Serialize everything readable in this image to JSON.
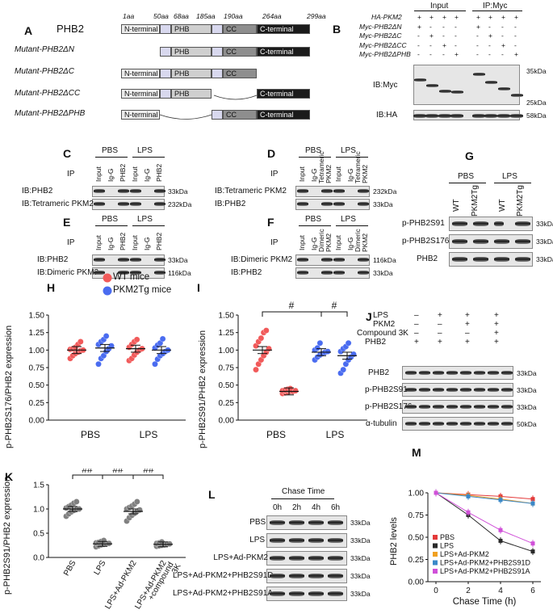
{
  "panelA": {
    "letter": "A",
    "protein": "PHB2",
    "aa": [
      "1aa",
      "50aa",
      "68aa",
      "185aa",
      "190aa",
      "264aa",
      "299aa"
    ],
    "domains": {
      "nterm": "N-terminal",
      "phb": "PHB",
      "cc": "CC",
      "cterm": "C-terminal"
    },
    "mutants": [
      "Mutant-PHB2ΔN",
      "Mutant-PHB2ΔC",
      "Mutant-PHB2ΔCC",
      "Mutant-PHB2ΔPHB"
    ]
  },
  "panelB": {
    "letter": "B",
    "groups": [
      "Input",
      "IP:Myc"
    ],
    "rows": [
      {
        "label": "HA-PKM2",
        "marks": [
          "+",
          "+",
          "+",
          "+",
          "+",
          "+",
          "+",
          "+"
        ]
      },
      {
        "label": "Myc-PHB2ΔN",
        "marks": [
          "+",
          "",
          "",
          "",
          "+",
          "",
          "",
          ""
        ]
      },
      {
        "label": "Myc-PHB2ΔC",
        "marks": [
          "",
          "+",
          "",
          "",
          "",
          "+",
          "",
          ""
        ]
      },
      {
        "label": "Myc-PHB2ΔCC",
        "marks": [
          "",
          "",
          "+",
          "",
          "",
          "",
          "+",
          ""
        ]
      },
      {
        "label": "Myc-PHB2ΔPHB",
        "marks": [
          "",
          "",
          "",
          "+",
          "",
          "",
          "",
          "+"
        ]
      }
    ],
    "blots": [
      "IB:Myc",
      "IB:HA"
    ],
    "mw": [
      "35kDa",
      "25kDa",
      "58kDa"
    ]
  },
  "panelC": {
    "letter": "C",
    "groups": [
      "PBS",
      "LPS"
    ],
    "ip": "IP",
    "lanes": [
      "Input",
      "Ig-G",
      "PHB2",
      "Input",
      "Ig-G",
      "PHB2"
    ],
    "blots": [
      "IB:PHB2",
      "IB:Tetrameric PKM2"
    ],
    "mw": [
      "33kDa",
      "232kDa"
    ]
  },
  "panelD": {
    "letter": "D",
    "groups": [
      "PBS",
      "LPS"
    ],
    "ip": "IP",
    "lanes": [
      "Input",
      "Ig-G",
      "Tetrameric PKM2",
      "Input",
      "Ig-G",
      "Tetrameric PKM2"
    ],
    "blots": [
      "IB:Tetrameric PKM2",
      "IB:PHB2"
    ],
    "mw": [
      "232kDa",
      "33kDa"
    ]
  },
  "panelE": {
    "letter": "E",
    "groups": [
      "PBS",
      "LPS"
    ],
    "ip": "IP",
    "lanes": [
      "Input",
      "Ig-G",
      "PHB2",
      "Input",
      "Ig-G",
      "PHB2"
    ],
    "blots": [
      "IB:PHB2",
      "IB:Dimeric  PKM2"
    ],
    "mw": [
      "33kDa",
      "116kDa"
    ]
  },
  "panelF": {
    "letter": "F",
    "groups": [
      "PBS",
      "LPS"
    ],
    "ip": "IP",
    "lanes": [
      "Input",
      "Ig-G",
      "Dimeric PKM2",
      "Input",
      "Ig-G",
      "Dimeric PKM2"
    ],
    "blots": [
      "IB:Dimeric  PKM2",
      "IB:PHB2"
    ],
    "mw": [
      "116kDa",
      "33kDa"
    ]
  },
  "panelG": {
    "letter": "G",
    "groups": [
      "PBS",
      "LPS"
    ],
    "lanes": [
      "WT",
      "PKM2Tg",
      "WT",
      "PKM2Tg"
    ],
    "blots": [
      "p-PHB2S91",
      "p-PHB2S176",
      "PHB2"
    ],
    "mw": [
      "33kDa",
      "33kDa",
      "33kDa"
    ]
  },
  "panelH": {
    "letter": "H",
    "legend": [
      "WT mice",
      "PKM2Tg mice"
    ],
    "chart_data": {
      "type": "scatter",
      "ylabel": "p-PHB2S176/PHB2 expression",
      "categories": [
        "PBS",
        "LPS"
      ],
      "ylim": [
        0,
        1.5
      ],
      "yticks": [
        "0.00",
        "0.25",
        "0.50",
        "0.75",
        "1.00",
        "1.25",
        "1.50"
      ],
      "series": [
        {
          "name": "WT mice",
          "color": "#f15a5a",
          "groups": [
            {
              "category": "PBS",
              "mean": 1.0,
              "values": [
                0.88,
                0.92,
                0.95,
                0.97,
                0.99,
                1.0,
                1.01,
                1.02,
                1.04,
                1.08,
                1.12
              ]
            },
            {
              "category": "LPS",
              "mean": 1.02,
              "values": [
                0.85,
                0.88,
                0.93,
                0.97,
                1.0,
                1.02,
                1.04,
                1.08,
                1.12,
                1.15
              ]
            }
          ]
        },
        {
          "name": "PKM2Tg mice",
          "color": "#4a6cf0",
          "groups": [
            {
              "category": "PBS",
              "mean": 1.03,
              "values": [
                0.8,
                0.88,
                0.92,
                0.98,
                1.02,
                1.06,
                1.08,
                1.12,
                1.15,
                1.2
              ]
            },
            {
              "category": "LPS",
              "mean": 1.0,
              "values": [
                0.8,
                0.87,
                0.92,
                0.95,
                0.98,
                1.0,
                1.03,
                1.07,
                1.1,
                1.16
              ]
            }
          ]
        }
      ]
    }
  },
  "panelI": {
    "letter": "I",
    "sig": [
      "#",
      "#"
    ],
    "chart_data": {
      "type": "scatter",
      "ylabel": "p-PHB2S91/PHB2 expression",
      "categories": [
        "PBS",
        "LPS"
      ],
      "ylim": [
        0,
        1.5
      ],
      "yticks": [
        "0.00",
        "0.25",
        "0.50",
        "0.75",
        "1.00",
        "1.25",
        "1.50"
      ],
      "series": [
        {
          "name": "WT mice",
          "color": "#f15a5a",
          "groups": [
            {
              "category": "PBS",
              "mean": 1.0,
              "values": [
                0.72,
                0.8,
                0.86,
                0.92,
                0.97,
                1.02,
                1.06,
                1.12,
                1.17,
                1.25,
                1.28
              ]
            },
            {
              "category": "LPS",
              "mean": 0.41,
              "values": [
                0.38,
                0.39,
                0.4,
                0.41,
                0.41,
                0.42,
                0.42,
                0.43,
                0.44,
                0.45
              ]
            }
          ]
        },
        {
          "name": "PKM2Tg mice",
          "color": "#4a6cf0",
          "groups": [
            {
              "category": "PBS",
              "mean": 0.97,
              "values": [
                0.86,
                0.9,
                0.93,
                0.95,
                0.97,
                0.98,
                1.0,
                1.03,
                1.1
              ]
            },
            {
              "category": "LPS",
              "mean": 0.92,
              "values": [
                0.67,
                0.72,
                0.8,
                0.86,
                0.9,
                0.94,
                0.98,
                1.02,
                1.05,
                1.1
              ]
            }
          ]
        }
      ]
    }
  },
  "panelJ": {
    "letter": "J",
    "rows": [
      {
        "label": "LPS",
        "marks": [
          "–",
          "+",
          "+",
          "+"
        ]
      },
      {
        "label": "PKM2",
        "marks": [
          "–",
          "–",
          "+",
          "+"
        ]
      },
      {
        "label": "Compound 3K",
        "marks": [
          "–",
          "–",
          "–",
          "+"
        ]
      },
      {
        "label": "PHB2",
        "marks": [
          "+",
          "+",
          "+",
          "+"
        ]
      }
    ],
    "blots": [
      "PHB2",
      "p-PHB2S91",
      "p-PHB2S176",
      "α-tubulin"
    ],
    "mw": [
      "33kDa",
      "33kDa",
      "33kDa",
      "50kDa"
    ]
  },
  "panelK": {
    "letter": "K",
    "sig": [
      "##",
      "##",
      "##"
    ],
    "chart_data": {
      "type": "scatter",
      "ylabel": "p-PHB2S91/PHB2 expression",
      "categories": [
        "PBS",
        "LPS",
        "LPS+Ad-PKM2",
        "LPS+Ad-PKM2 +compound 3K"
      ],
      "ylim": [
        0,
        1.5
      ],
      "yticks": [
        "0.0",
        "0.5",
        "1.0",
        "1.5"
      ],
      "groups": [
        {
          "category": "PBS",
          "mean": 1.0,
          "values": [
            0.85,
            0.9,
            0.94,
            0.97,
            0.99,
            1.0,
            1.02,
            1.05,
            1.08,
            1.12,
            1.15
          ]
        },
        {
          "category": "LPS",
          "mean": 0.28,
          "values": [
            0.22,
            0.24,
            0.26,
            0.27,
            0.28,
            0.29,
            0.3,
            0.31,
            0.33,
            0.35
          ]
        },
        {
          "category": "LPS+Ad-PKM2",
          "mean": 0.95,
          "values": [
            0.75,
            0.82,
            0.87,
            0.91,
            0.95,
            0.98,
            1.0,
            1.03,
            1.06,
            1.1,
            1.15
          ]
        },
        {
          "category": "LPS+Ad-PKM2 +compound 3K",
          "mean": 0.27,
          "values": [
            0.23,
            0.24,
            0.25,
            0.26,
            0.27,
            0.28,
            0.29,
            0.3,
            0.32
          ]
        }
      ]
    }
  },
  "panelL": {
    "letter": "L",
    "title": "Chase Time",
    "times": [
      "0h",
      "2h",
      "4h",
      "6h"
    ],
    "rows": [
      "PBS",
      "LPS",
      "LPS+Ad-PKM2",
      "LPS+Ad-PKM2+PHB2S91D",
      "LPS+Ad-PKM2+PHB2S91A"
    ],
    "mw": [
      "33kDa",
      "33kDa",
      "33kDa",
      "33kDa",
      "33kDa"
    ]
  },
  "panelM": {
    "letter": "M",
    "chart_data": {
      "type": "line",
      "xlabel": "Chase Time (h)",
      "ylabel": "PHB2 levels",
      "x": [
        0,
        2,
        4,
        6
      ],
      "xticks": [
        "0",
        "2",
        "4",
        "6"
      ],
      "ylim": [
        0,
        1.0
      ],
      "yticks": [
        "0.00",
        "0.25",
        "0.50",
        "0.75",
        "1.00"
      ],
      "series": [
        {
          "name": "PBS",
          "color": "#e43a3a",
          "values": [
            1.0,
            0.98,
            0.96,
            0.93
          ]
        },
        {
          "name": "LPS",
          "color": "#2a2a2a",
          "values": [
            1.0,
            0.75,
            0.46,
            0.34
          ]
        },
        {
          "name": "LPS+Ad-PKM2",
          "color": "#f0a020",
          "values": [
            1.0,
            0.97,
            0.93,
            0.88
          ]
        },
        {
          "name": "LPS+Ad-PKM2+PHB2S91D",
          "color": "#3a88c8",
          "values": [
            1.0,
            0.96,
            0.92,
            0.88
          ]
        },
        {
          "name": "LPS+Ad-PKM2+PHB2S91A",
          "color": "#d050d8",
          "values": [
            1.0,
            0.78,
            0.58,
            0.43
          ]
        }
      ]
    }
  }
}
